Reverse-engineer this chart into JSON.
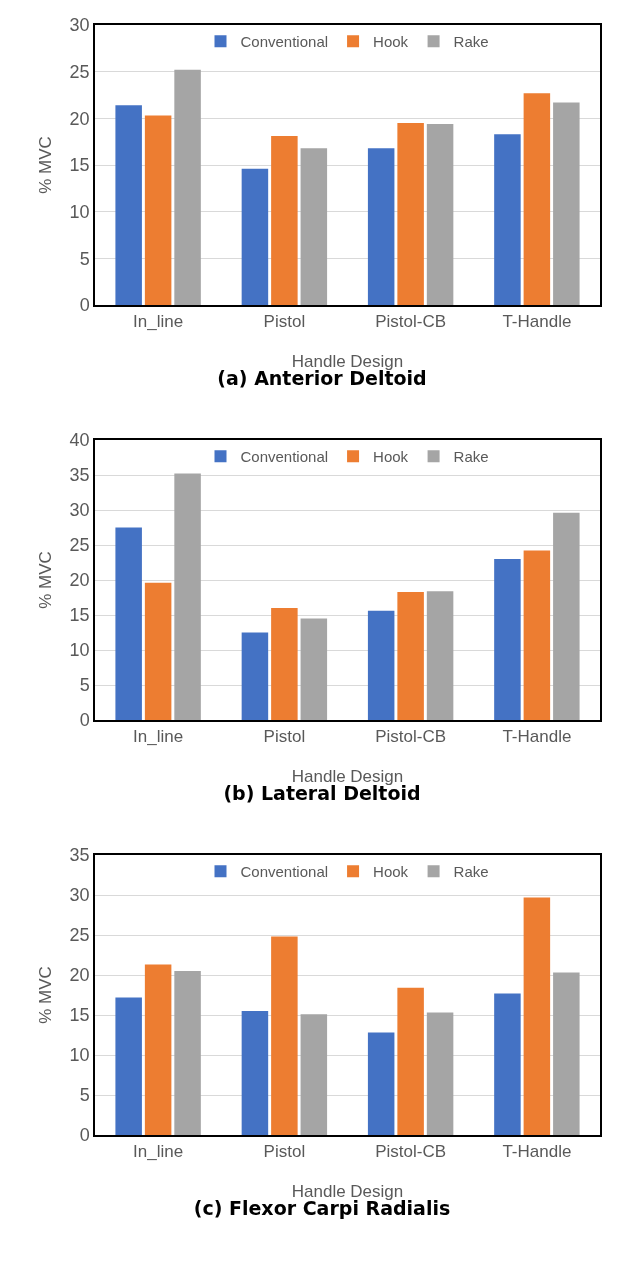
{
  "chart_data": [
    {
      "type": "bar",
      "title": "(a) Anterior Deltoid",
      "xlabel": "Handle Design",
      "ylabel": "% MVC",
      "categories": [
        "In_line",
        "Pistol",
        "Pistol-CB",
        "T-Handle"
      ],
      "series": [
        {
          "name": "Conventional",
          "color": "#4472c4",
          "values": [
            21.4,
            14.6,
            16.8,
            18.3
          ]
        },
        {
          "name": "Hook",
          "color": "#ed7d31",
          "values": [
            20.3,
            18.1,
            19.5,
            22.7
          ]
        },
        {
          "name": "Rake",
          "color": "#a5a5a5",
          "values": [
            25.2,
            16.8,
            19.4,
            21.7
          ]
        }
      ],
      "ylim": [
        0,
        30
      ],
      "yticks": [
        0,
        5,
        10,
        15,
        20,
        25,
        30
      ],
      "grid": "y",
      "legend": "top"
    },
    {
      "type": "bar",
      "title": "(b) Lateral Deltoid",
      "xlabel": "Handle Design",
      "ylabel": "% MVC",
      "categories": [
        "In_line",
        "Pistol",
        "Pistol-CB",
        "T-Handle"
      ],
      "series": [
        {
          "name": "Conventional",
          "color": "#4472c4",
          "values": [
            27.5,
            12.5,
            15.6,
            23.0
          ]
        },
        {
          "name": "Hook",
          "color": "#ed7d31",
          "values": [
            19.6,
            16.0,
            18.3,
            24.2
          ]
        },
        {
          "name": "Rake",
          "color": "#a5a5a5",
          "values": [
            35.2,
            14.5,
            18.4,
            29.6
          ]
        }
      ],
      "ylim": [
        0,
        40
      ],
      "yticks": [
        0,
        5,
        10,
        15,
        20,
        25,
        30,
        35,
        40
      ],
      "grid": "y",
      "legend": "top"
    },
    {
      "type": "bar",
      "title": "(c) Flexor Carpi Radialis",
      "xlabel": "Handle Design",
      "ylabel": "% MVC",
      "categories": [
        "In_line",
        "Pistol",
        "Pistol-CB",
        "T-Handle"
      ],
      "series": [
        {
          "name": "Conventional",
          "color": "#4472c4",
          "values": [
            17.2,
            15.5,
            12.8,
            17.7
          ]
        },
        {
          "name": "Hook",
          "color": "#ed7d31",
          "values": [
            21.3,
            24.8,
            18.4,
            29.7
          ]
        },
        {
          "name": "Rake",
          "color": "#a5a5a5",
          "values": [
            20.5,
            15.1,
            15.3,
            20.3
          ]
        }
      ],
      "ylim": [
        0,
        35
      ],
      "yticks": [
        0,
        5,
        10,
        15,
        20,
        25,
        30,
        35
      ],
      "grid": "y",
      "legend": "top"
    }
  ]
}
